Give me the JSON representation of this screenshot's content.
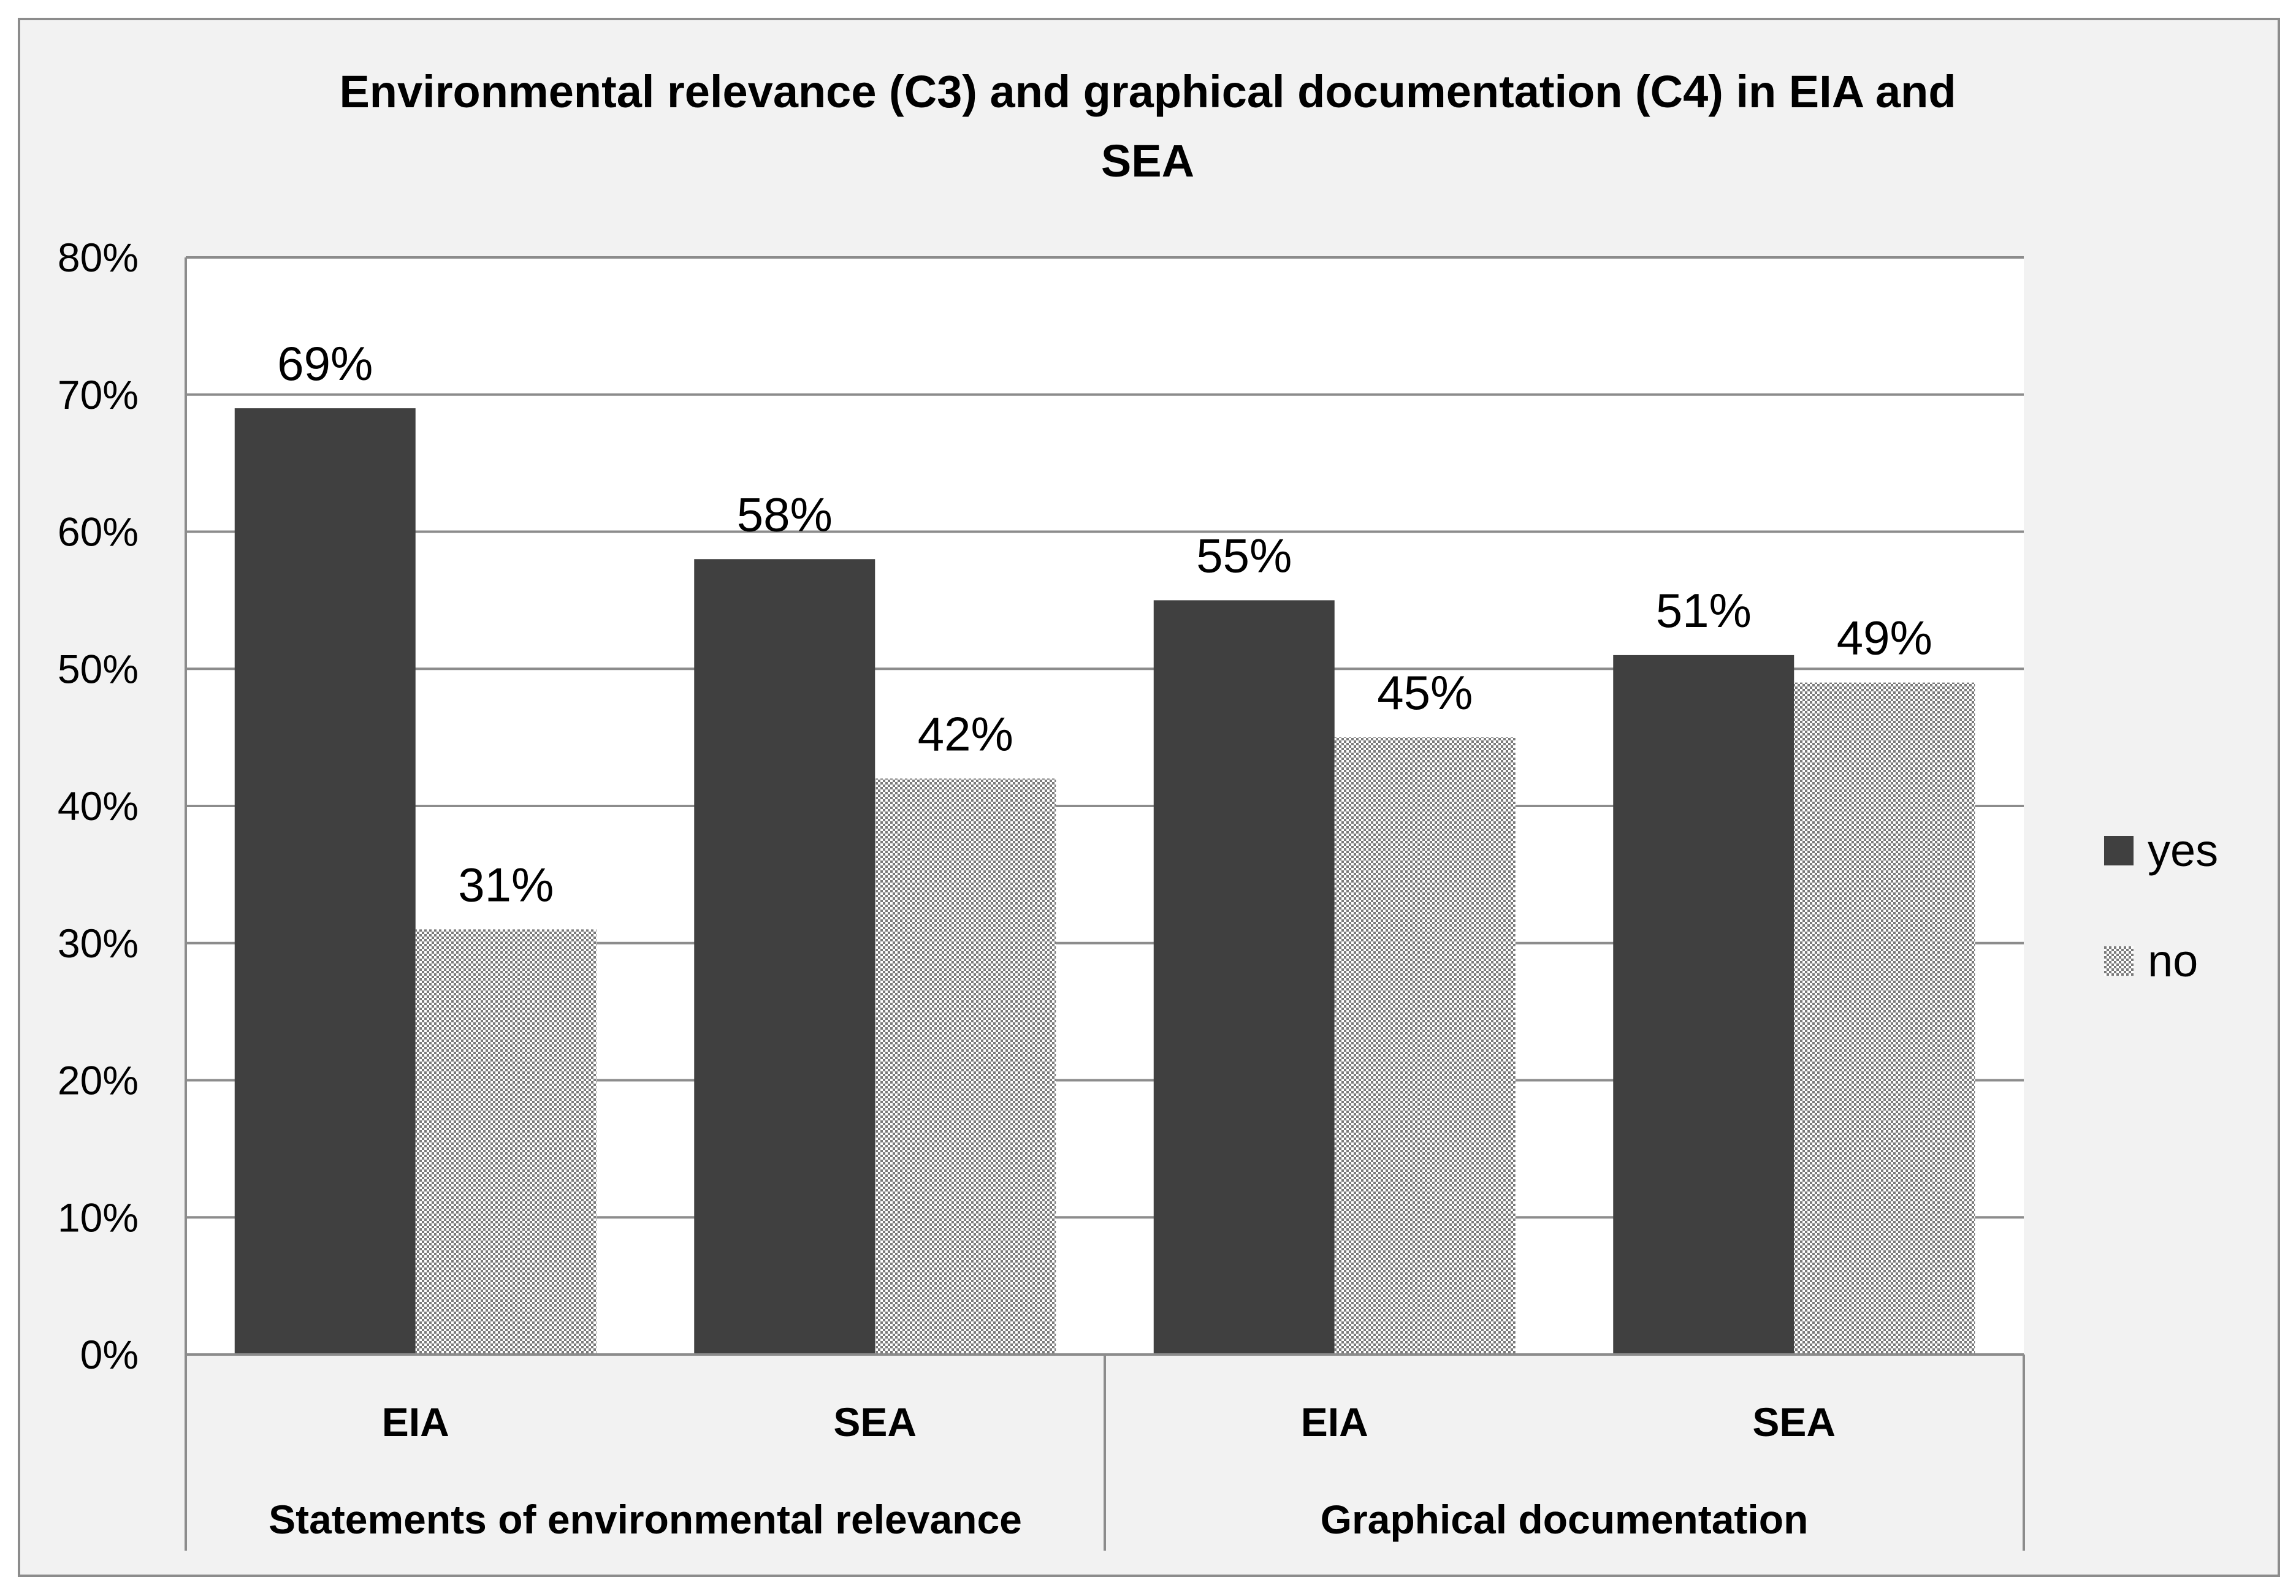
{
  "chart_data": {
    "type": "bar",
    "title": "Environmental relevance  (C3) and graphical documentation (C4) in EIA and SEA",
    "title_lines": [
      "Environmental relevance  (C3) and graphical documentation (C4) in EIA and",
      "SEA"
    ],
    "categories": [
      "EIA",
      "SEA",
      "EIA",
      "SEA"
    ],
    "groups": [
      {
        "label": "Statements of environmental relevance",
        "categories": [
          "EIA",
          "SEA"
        ]
      },
      {
        "label": "Graphical documentation",
        "categories": [
          "EIA",
          "SEA"
        ]
      }
    ],
    "series": [
      {
        "name": "yes",
        "values": [
          69,
          58,
          55,
          51
        ],
        "color": "#404040",
        "pattern": "solid"
      },
      {
        "name": "no",
        "values": [
          31,
          42,
          45,
          49
        ],
        "color": "#a0a0a0",
        "pattern": "checker"
      }
    ],
    "data_labels": [
      [
        "69%",
        "58%",
        "55%",
        "51%"
      ],
      [
        "31%",
        "42%",
        "45%",
        "49%"
      ]
    ],
    "yaxis": {
      "min": 0,
      "max": 80,
      "step": 10,
      "tick_labels": [
        "0%",
        "10%",
        "20%",
        "30%",
        "40%",
        "50%",
        "60%",
        "70%",
        "80%"
      ]
    },
    "xlabel": "",
    "ylabel": "",
    "grid": true,
    "legend_position": "right",
    "colors": {
      "frame_bg": "#f2f2f2",
      "plot_bg": "#ffffff",
      "grid": "#8c8c8c",
      "yes": "#404040",
      "no_light": "#ffffff",
      "no_dark": "#7a7a7a"
    }
  }
}
